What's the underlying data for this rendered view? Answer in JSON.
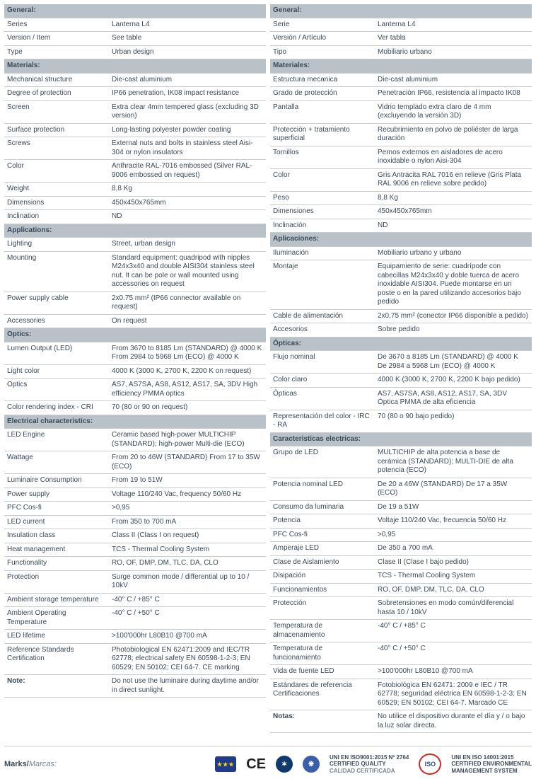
{
  "left": {
    "sections": [
      {
        "header": "General:",
        "rows": [
          {
            "label": "Series",
            "value": "Lanterna L4"
          },
          {
            "label": "Version / Item",
            "value": "See table"
          },
          {
            "label": "Type",
            "value": "Urban design"
          }
        ]
      },
      {
        "header": "Materials:",
        "rows": [
          {
            "label": "Mechanical structure",
            "value": "Die-cast aluminium"
          },
          {
            "label": "Degree of protection",
            "value": "IP66 penetration, IK08 impact resistance"
          },
          {
            "label": "Screen",
            "value": "Extra clear 4mm tempered glass (excluding 3D version)"
          },
          {
            "label": "Surface protection",
            "value": "Long-lasting polyester powder coating"
          },
          {
            "label": "Screws",
            "value": "External nuts and bolts in stainless steel Aisi-304 or nylon insulators"
          },
          {
            "label": "Color",
            "value": "Anthracite RAL-7016 embossed (Silver RAL-9006 embossed on request)"
          },
          {
            "label": "Weight",
            "value": "8,8 Kg"
          },
          {
            "label": "Dimensions",
            "value": "450x450x765mm"
          },
          {
            "label": "Inclination",
            "value": "ND"
          }
        ]
      },
      {
        "header": "Applications:",
        "rows": [
          {
            "label": "Lighting",
            "value": "Street, urban design"
          },
          {
            "label": "Mounting",
            "value": "Standard equipment: quadripod with nipples M24x3x40 and double AISI304 stainless steel nut. It can be pole or wall mounted using accessories on request"
          },
          {
            "label": "Power supply cable",
            "value": "2x0.75 mm² (IP66 connector available on request)"
          },
          {
            "label": "Accessories",
            "value": "On request"
          }
        ]
      },
      {
        "header": "Optics:",
        "rows": [
          {
            "label": "Lumen Output (LED)",
            "value": "From 3670 to 8185 Lm (STANDARD) @ 4000 K From 2984 to 5968 Lm (ECO) @ 4000 K"
          },
          {
            "label": "Light color",
            "value": "4000 K (3000 K, 2700 K, 2200 K on request)"
          },
          {
            "label": "Optics",
            "value": "AS7, AS7SA, AS8, AS12, AS17, SA, 3DV High efficiency PMMA optics"
          },
          {
            "label": "Color rendering index - CRI",
            "value": "70 (80 or 90 on request)"
          }
        ]
      },
      {
        "header": "Electrical characteristics:",
        "rows": [
          {
            "label": "LED Engine",
            "value": "Ceramic based high-power MULTICHIP (STANDARD); high-power Multi-die (ECO)"
          },
          {
            "label": "Wattage",
            "value": "From 20 to 46W (STANDARD) From 17 to 35W (ECO)"
          },
          {
            "label": "Luminaire Consumption",
            "value": "From 19 to 51W"
          },
          {
            "label": "Power supply",
            "value": "Voltage 110/240 Vac, frequency 50/60 Hz"
          },
          {
            "label": "PFC Cos-fi",
            "value": ">0,95"
          },
          {
            "label": "LED current",
            "value": "From 350 to 700 mA"
          },
          {
            "label": "Insulation class",
            "value": "Class II (Class I on request)"
          },
          {
            "label": "Heat management",
            "value": "TCS - Thermal Cooling System"
          },
          {
            "label": "Functionality",
            "value": "RO, OF, DMP, DM, TLC, DA, CLO"
          },
          {
            "label": "Protection",
            "value": "Surge common mode / differential up to 10 / 10kV"
          },
          {
            "label": "Ambient storage temperature",
            "value": "-40° C / +85° C"
          },
          {
            "label": "Ambient Operating Temperature",
            "value": "-40° C / +50° C"
          },
          {
            "label": "LED lifetime",
            "value": ">100'000hr L80B10 @700 mA"
          },
          {
            "label": "Reference Standards Certification",
            "value": "Photobiological EN 62471:2009 and IEC/TR 62778; electrical safety EN 60598-1-2-3; EN 60529; EN 50102; CEI 64-7. CE marking"
          },
          {
            "label": "Note:",
            "value": "Do not use the luminaire during daytime and/or in direct sunlight.",
            "note": true
          }
        ]
      }
    ]
  },
  "right": {
    "sections": [
      {
        "header": "General:",
        "rows": [
          {
            "label": "Serie",
            "value": "Lanterna L4"
          },
          {
            "label": "Versión / Artículo",
            "value": "Ver tabla"
          },
          {
            "label": "Tipo",
            "value": "Mobiliario urbano"
          }
        ]
      },
      {
        "header": "Materiales:",
        "rows": [
          {
            "label": "Estructura mecanica",
            "value": "Die-cast aluminium"
          },
          {
            "label": "Grado de protección",
            "value": "Penetración IP66, resistencia al impacto IK08"
          },
          {
            "label": "Pantalla",
            "value": "Vidrio templado extra claro de 4 mm (excluyendo la versión 3D)"
          },
          {
            "label": "Protección + tratamiento superficial",
            "value": "Recubrimiento en polvo de poliéster de larga duración"
          },
          {
            "label": "Tornillos",
            "value": "Pernos externos en aisladores de acero inoxidable o nylon Aisi-304"
          },
          {
            "label": "Color",
            "value": "Gris Antracita RAL 7016 en relieve (Gris Plata RAL 9006 en relieve sobre pedido)"
          },
          {
            "label": "Peso",
            "value": "8,8 Kg"
          },
          {
            "label": "Dimensiones",
            "value": "450x450x765mm"
          },
          {
            "label": "Inclinación",
            "value": "ND"
          }
        ]
      },
      {
        "header": "Aplicaciones:",
        "rows": [
          {
            "label": "Iluminación",
            "value": "Mobiliario urbano y urbano"
          },
          {
            "label": "Montaje",
            "value": "Equipamiento de serie: cuadrípode con cabecillas M24x3x40 y doble tuerca de acero inoxidable AISI304. Puede montarse en un poste o en la pared utilizando accesorios bajo pedido"
          },
          {
            "label": "Cable de alimentación",
            "value": "2x0,75 mm² (conector IP66 disponible a pedido)"
          },
          {
            "label": "Accesorios",
            "value": "Sobre pedido"
          }
        ]
      },
      {
        "header": "Ópticas:",
        "rows": [
          {
            "label": "Flujo nominal",
            "value": "De 3670 a 8185 Lm (STANDARD) @ 4000 K De 2984 a 5968 Lm (ECO) @ 4000 K"
          },
          {
            "label": "Color claro",
            "value": "4000 K (3000 K, 2700 K, 2200 K bajo pedido)"
          },
          {
            "label": "Ópticas",
            "value": "AS7, AS7SA, AS8, AS12, AS17, SA, 3DV Óptica PMMA de alta eficiencia"
          },
          {
            "label": "Representación del color - IRC - RA",
            "value": "70 (80 o 90 bajo pedido)"
          }
        ]
      },
      {
        "header": "Caracteristicas electricas:",
        "rows": [
          {
            "label": "Grupo de LED",
            "value": "MULTICHIP de alta potencia a base de cerámica (STANDARD); MULTI-DIE de alta potencia (ECO)"
          },
          {
            "label": "Potencia nominal LED",
            "value": "De 20 a 46W (STANDARD) De 17 a 35W (ECO)"
          },
          {
            "label": "Consumo da luminaria",
            "value": "De 19 a 51W"
          },
          {
            "label": "Potencia",
            "value": "Voltaje 110/240 Vac, frecuencia 50/60 Hz"
          },
          {
            "label": "PFC Cos-fi",
            "value": ">0,95"
          },
          {
            "label": "Amperaje LED",
            "value": "De 350 a 700 mA"
          },
          {
            "label": "Clase de Aislamiento",
            "value": "Clase II (Clase I bajo pedido)"
          },
          {
            "label": "Disipación",
            "value": "TCS - Thermal Cooling System"
          },
          {
            "label": "Funcionamientos",
            "value": "RO, OF, DMP, DM, TLC, DA, CLO"
          },
          {
            "label": "Protección",
            "value": "Sobretensiones en modo común/diferencial hasta 10 / 10kV"
          },
          {
            "label": "Temperatura de almacenamiento",
            "value": "-40° C / +85° C"
          },
          {
            "label": "Temperatura de funcionamiento",
            "value": "-40° C / +50° C"
          },
          {
            "label": "Vida de fuente LED",
            "value": ">100'000hr L80B10 @700 mA"
          },
          {
            "label": "Estándares de referencia Certificaciones",
            "value": "Fotobiológica EN 62471: 2009 e IEC / TR 62778; seguridad eléctrica EN 60598-1-2-3; EN 60529; EN 50102; CEI 64-7. Marcado CE"
          },
          {
            "label": "Notas:",
            "value": "No utilice el dispositivo durante el día y / o bajo la luz solar directa.",
            "note": true
          }
        ]
      }
    ]
  },
  "marks": {
    "label": "Marks/",
    "sub": "Marcas:",
    "cert1": {
      "t1": "UNI EN ISO9001:2015 Nº 2764",
      "t2": "CERTIFIED QUALITY",
      "t3": "CALIDAD CERTIFICADA"
    },
    "cert2": {
      "t1": "UNI EN ISO 14001:2015",
      "t2": "CERTIFIED ENVIRONMENTAL",
      "t3": "MANAGEMENT SYSTEM"
    }
  }
}
